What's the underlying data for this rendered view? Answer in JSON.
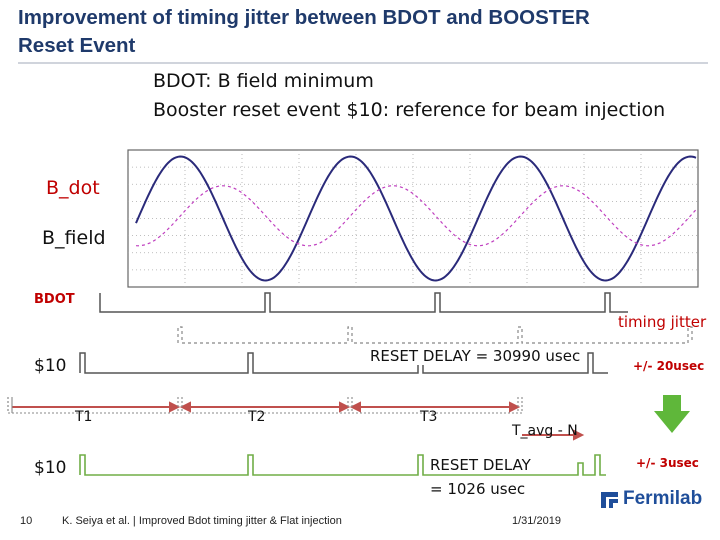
{
  "slide": {
    "title": "Improvement of timing jitter between BDOT and BOOSTER Reset Event",
    "title_line1": "Improvement of timing jitter between BDOT and BOOSTER",
    "title_line2": "Reset Event",
    "subtitle_line1": "BDOT: B field minimum",
    "subtitle_line2": "Booster reset event $10: reference for beam injection"
  },
  "scope": {
    "bdot_label": "B_dot",
    "bfield_label": "B_field"
  },
  "timing": {
    "bdot_label": "BDOT",
    "jitter_label": "timing jitter",
    "event10_label": "$10",
    "reset_delay_old": "RESET DELAY = 30990 usec",
    "jitter_old": "+/- 20usec",
    "t1": "T1",
    "t2": "T2",
    "t3": "T3",
    "t_avg": "T_avg - N",
    "event10_label_new": "$10",
    "reset_delay_new_line1": "RESET DELAY",
    "reset_delay_new_line2": "= 1026 usec",
    "jitter_new": "+/- 3usec"
  },
  "footer": {
    "page": "10",
    "citation": "K. Seiya et al. | Improved Bdot timing jitter & Flat injection",
    "date": "1/31/2019",
    "logo_text": "Fermilab"
  },
  "colors": {
    "title": "#1f3a6b",
    "bdot_trace": "#2a2a7a",
    "bfield_trace": "#c040c0",
    "red_label": "#c00000",
    "green_trace": "#70ad47",
    "arrow_green": "#5fb73a",
    "interval_arrow": "#c0504d",
    "logo_blue": "#1f4e9a"
  }
}
